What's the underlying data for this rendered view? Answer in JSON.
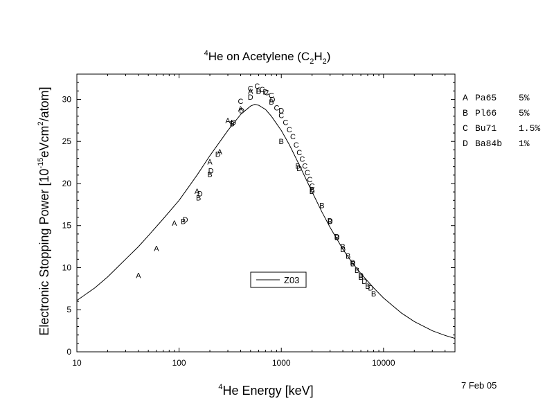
{
  "chart_data": {
    "type": "scatter",
    "title": {
      "sup": "4",
      "main": "He on Acetylene (C",
      "sub1": "2",
      "mid": "H",
      "sub2": "2",
      "end": ")"
    },
    "xlabel": {
      "sup": "4",
      "main": "He Energy [keV]"
    },
    "ylabel": {
      "main": "Electronic Stopping Power [10",
      "sup1": "-15",
      "mid": "eVcm",
      "sup2": "2",
      "end": "/atom]"
    },
    "x_scale": "log",
    "xlim": [
      10,
      50000
    ],
    "ylim": [
      0,
      33
    ],
    "x_ticks": [
      10,
      100,
      1000,
      10000
    ],
    "x_tick_labels": [
      "10",
      "100",
      "1000",
      "10000"
    ],
    "y_ticks": [
      0,
      5,
      10,
      15,
      20,
      25,
      30
    ],
    "y_tick_labels": [
      "0",
      "5",
      "10",
      "15",
      "20",
      "25",
      "30"
    ],
    "grid": false,
    "legend": {
      "placement": "center",
      "label": "Z03"
    },
    "curve": {
      "name": "Z03",
      "color": "#000000",
      "points": [
        [
          10,
          6.1
        ],
        [
          15,
          7.6
        ],
        [
          20,
          8.9
        ],
        [
          30,
          11.0
        ],
        [
          40,
          12.5
        ],
        [
          50,
          13.8
        ],
        [
          70,
          15.8
        ],
        [
          100,
          18.0
        ],
        [
          150,
          21.0
        ],
        [
          200,
          23.3
        ],
        [
          300,
          26.3
        ],
        [
          400,
          28.2
        ],
        [
          500,
          29.2
        ],
        [
          550,
          29.4
        ],
        [
          600,
          29.3
        ],
        [
          700,
          28.8
        ],
        [
          800,
          28.0
        ],
        [
          1000,
          26.3
        ],
        [
          1200,
          24.6
        ],
        [
          1500,
          22.2
        ],
        [
          2000,
          19.0
        ],
        [
          2500,
          16.6
        ],
        [
          3000,
          14.8
        ],
        [
          4000,
          12.2
        ],
        [
          5000,
          10.5
        ],
        [
          6000,
          9.3
        ],
        [
          8000,
          7.6
        ],
        [
          10000,
          6.4
        ],
        [
          15000,
          4.6
        ],
        [
          20000,
          3.6
        ],
        [
          30000,
          2.5
        ],
        [
          40000,
          1.95
        ],
        [
          50000,
          1.6
        ]
      ]
    },
    "references": [
      {
        "key": "A",
        "ref": "Pa65",
        "err": "5%"
      },
      {
        "key": "B",
        "ref": "Pl66",
        "err": "5%"
      },
      {
        "key": "C",
        "ref": "Bu71",
        "err": "1.5%"
      },
      {
        "key": "D",
        "ref": "Ba84b",
        "err": "1%"
      }
    ],
    "series": [
      {
        "key": "A",
        "points": [
          [
            40,
            9.1
          ],
          [
            60,
            12.3
          ],
          [
            90,
            15.3
          ],
          [
            150,
            19.1
          ],
          [
            200,
            22.6
          ],
          [
            250,
            23.8
          ],
          [
            300,
            27.5
          ],
          [
            400,
            28.9
          ],
          [
            500,
            31.0
          ]
        ]
      },
      {
        "key": "B",
        "points": [
          [
            110,
            15.5
          ],
          [
            155,
            18.3
          ],
          [
            200,
            21.1
          ],
          [
            330,
            27.1
          ],
          [
            600,
            31.0
          ],
          [
            800,
            29.7
          ],
          [
            1000,
            25.0
          ],
          [
            1450,
            22.1
          ],
          [
            2000,
            19.3
          ],
          [
            2500,
            17.4
          ],
          [
            3000,
            15.5
          ],
          [
            3500,
            13.6
          ],
          [
            4000,
            12.5
          ],
          [
            4500,
            11.4
          ],
          [
            5000,
            10.5
          ],
          [
            5500,
            9.7
          ],
          [
            6000,
            8.9
          ],
          [
            7000,
            7.8
          ],
          [
            8000,
            6.9
          ]
        ]
      },
      {
        "key": "C",
        "points": [
          [
            400,
            29.8
          ],
          [
            500,
            31.3
          ],
          [
            580,
            31.6
          ],
          [
            650,
            31.2
          ],
          [
            720,
            30.8
          ],
          [
            800,
            30.5
          ],
          [
            900,
            29.0
          ],
          [
            1000,
            28.1
          ],
          [
            1100,
            27.3
          ],
          [
            1200,
            26.4
          ],
          [
            1300,
            25.6
          ],
          [
            1400,
            24.6
          ],
          [
            1500,
            23.7
          ],
          [
            1600,
            22.9
          ],
          [
            1700,
            22.1
          ],
          [
            1800,
            21.3
          ],
          [
            1900,
            20.5
          ],
          [
            2000,
            19.7
          ]
        ]
      },
      {
        "key": "D",
        "points": [
          [
            115,
            15.7
          ],
          [
            160,
            18.8
          ],
          [
            205,
            21.5
          ],
          [
            240,
            23.5
          ],
          [
            340,
            27.3
          ],
          [
            410,
            28.7
          ],
          [
            500,
            30.3
          ],
          [
            600,
            31.0
          ],
          [
            700,
            30.9
          ],
          [
            820,
            30.0
          ],
          [
            1000,
            28.7
          ],
          [
            1500,
            21.8
          ],
          [
            2000,
            19.1
          ],
          [
            3000,
            15.6
          ],
          [
            3500,
            13.7
          ],
          [
            4000,
            12.2
          ],
          [
            5000,
            10.6
          ],
          [
            6000,
            9.1
          ],
          [
            6500,
            8.4
          ],
          [
            7500,
            7.6
          ]
        ]
      }
    ]
  },
  "footer": {
    "date": "7 Feb 05"
  }
}
